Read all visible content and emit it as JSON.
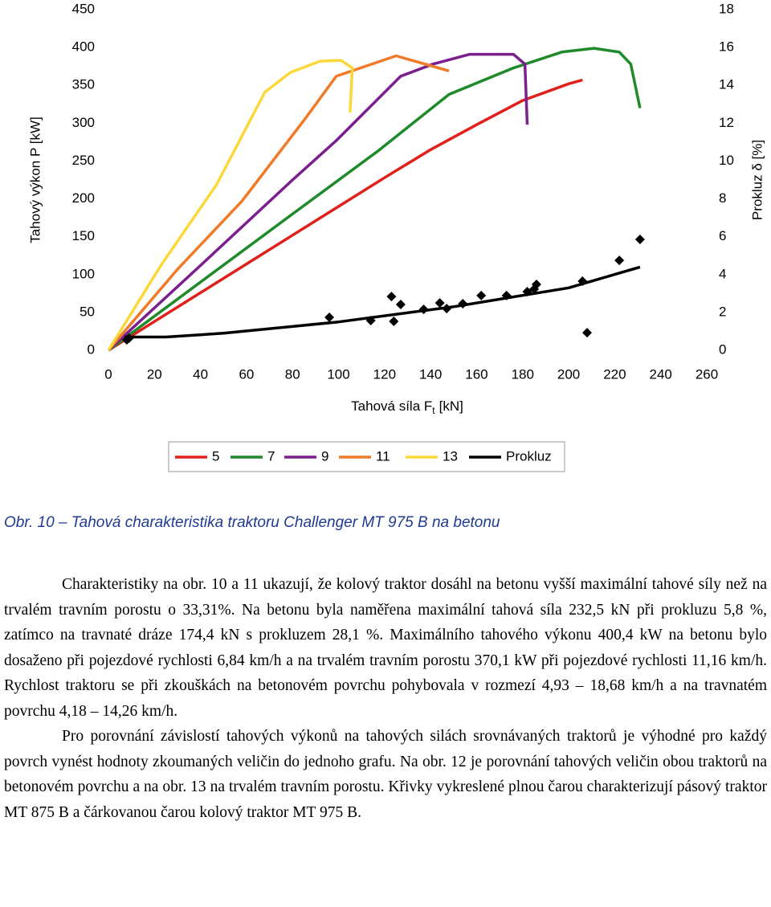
{
  "chart_data": {
    "type": "line",
    "y_label": "Tahový výkon P [kW]",
    "y2_label": "Prokluz δ [%]",
    "x_label": "Tahová síla F",
    "x_label_sub": "t",
    "x_label_unit": "[kN]",
    "xlim": [
      0,
      260
    ],
    "xticks": [
      0,
      20,
      40,
      60,
      80,
      100,
      120,
      140,
      160,
      180,
      200,
      220,
      240,
      260
    ],
    "ylim": [
      0,
      450
    ],
    "yticks": [
      0,
      50,
      100,
      150,
      200,
      250,
      300,
      350,
      400,
      450
    ],
    "y2lim": [
      0,
      18
    ],
    "y2ticks": [
      0,
      2,
      4,
      6,
      8,
      10,
      12,
      14,
      16,
      18
    ],
    "grid": false,
    "series": [
      {
        "name": "5",
        "color": "#e0201b",
        "x": [
          0,
          20,
          40,
          60,
          80,
          100,
          120,
          140,
          160,
          180,
          200,
          206
        ],
        "values": [
          0,
          38,
          76,
          114,
          152,
          190,
          228,
          265,
          298,
          330,
          352,
          357
        ]
      },
      {
        "name": "7",
        "color": "#1f8a2a",
        "x": [
          0,
          40,
          80,
          117,
          148,
          176,
          197,
          211,
          222,
          227,
          231
        ],
        "values": [
          0,
          90,
          180,
          263,
          338,
          373,
          394,
          399,
          394,
          378,
          320
        ]
      },
      {
        "name": "9",
        "color": "#7b1f8f",
        "x": [
          0,
          40,
          80,
          99,
          127,
          141,
          157,
          176,
          181,
          182
        ],
        "values": [
          0,
          112,
          225,
          277,
          362,
          378,
          391,
          391,
          378,
          298
        ]
      },
      {
        "name": "11",
        "color": "#f07a28",
        "x": [
          0,
          30,
          58,
          85,
          99,
          125,
          148
        ],
        "values": [
          0,
          107,
          197,
          304,
          362,
          389,
          369
        ]
      },
      {
        "name": "13",
        "color": "#fcd73a",
        "x": [
          0,
          23,
          47,
          68,
          79,
          92,
          101,
          106,
          105
        ],
        "values": [
          0,
          113,
          219,
          341,
          367,
          382,
          383,
          373,
          314
        ]
      },
      {
        "name": "Prokluz",
        "color": "#000000",
        "axis": "y2",
        "x": [
          7,
          25,
          50,
          100,
          150,
          200,
          231
        ],
        "values": [
          0.7,
          0.7,
          0.9,
          1.5,
          2.3,
          3.3,
          4.4
        ]
      }
    ],
    "points": {
      "color": "#000000",
      "axis": "y2",
      "x": [
        8,
        9,
        96,
        114,
        123,
        124,
        127,
        137,
        144,
        147,
        154,
        162,
        173,
        182,
        185,
        186,
        206,
        208,
        222,
        231
      ],
      "values": [
        0.55,
        0.64,
        1.74,
        1.57,
        2.84,
        1.53,
        2.42,
        2.16,
        2.5,
        2.2,
        2.46,
        2.89,
        2.89,
        3.1,
        3.23,
        3.48,
        3.65,
        0.93,
        4.75,
        5.86
      ]
    }
  },
  "caption": "Obr. 10 – Tahová charakteristika traktoru Challenger MT 975 B na betonu",
  "paragraphs": [
    "Charakteristiky na obr. 10 a 11 ukazují, že kolový traktor dosáhl na betonu vyšší maximální tahové síly než na trvalém travním porostu o 33,31%. Na betonu byla naměřena maximální tahová síla 232,5 kN při prokluzu 5,8 %, zatímco na travnaté dráze 174,4 kN s prokluzem 28,1 %. Maximálního tahového výkonu 400,4 kW na betonu bylo dosaženo při pojezdové rychlosti 6,84 km/h a na trvalém travním porostu 370,1 kW při pojezdové rychlosti 11,16 km/h. Rychlost traktoru se při zkouškách na betonovém povrchu pohybovala v rozmezí 4,93 – 18,68 km/h a na travnatém povrchu 4,18 – 14,26 km/h.",
    "Pro porovnání závislostí tahových výkonů na tahových silách srovnávaných traktorů je výhodné pro každý povrch vynést hodnoty zkoumaných veličin do jednoho grafu. Na obr. 12 je porovnání tahových veličin obou traktorů na betonovém povrchu a na obr. 13 na trvalém travním porostu. Křivky vykreslené plnou čarou charakterizují pásový traktor MT 875 B a čárkovanou čarou kolový traktor MT 975 B."
  ]
}
